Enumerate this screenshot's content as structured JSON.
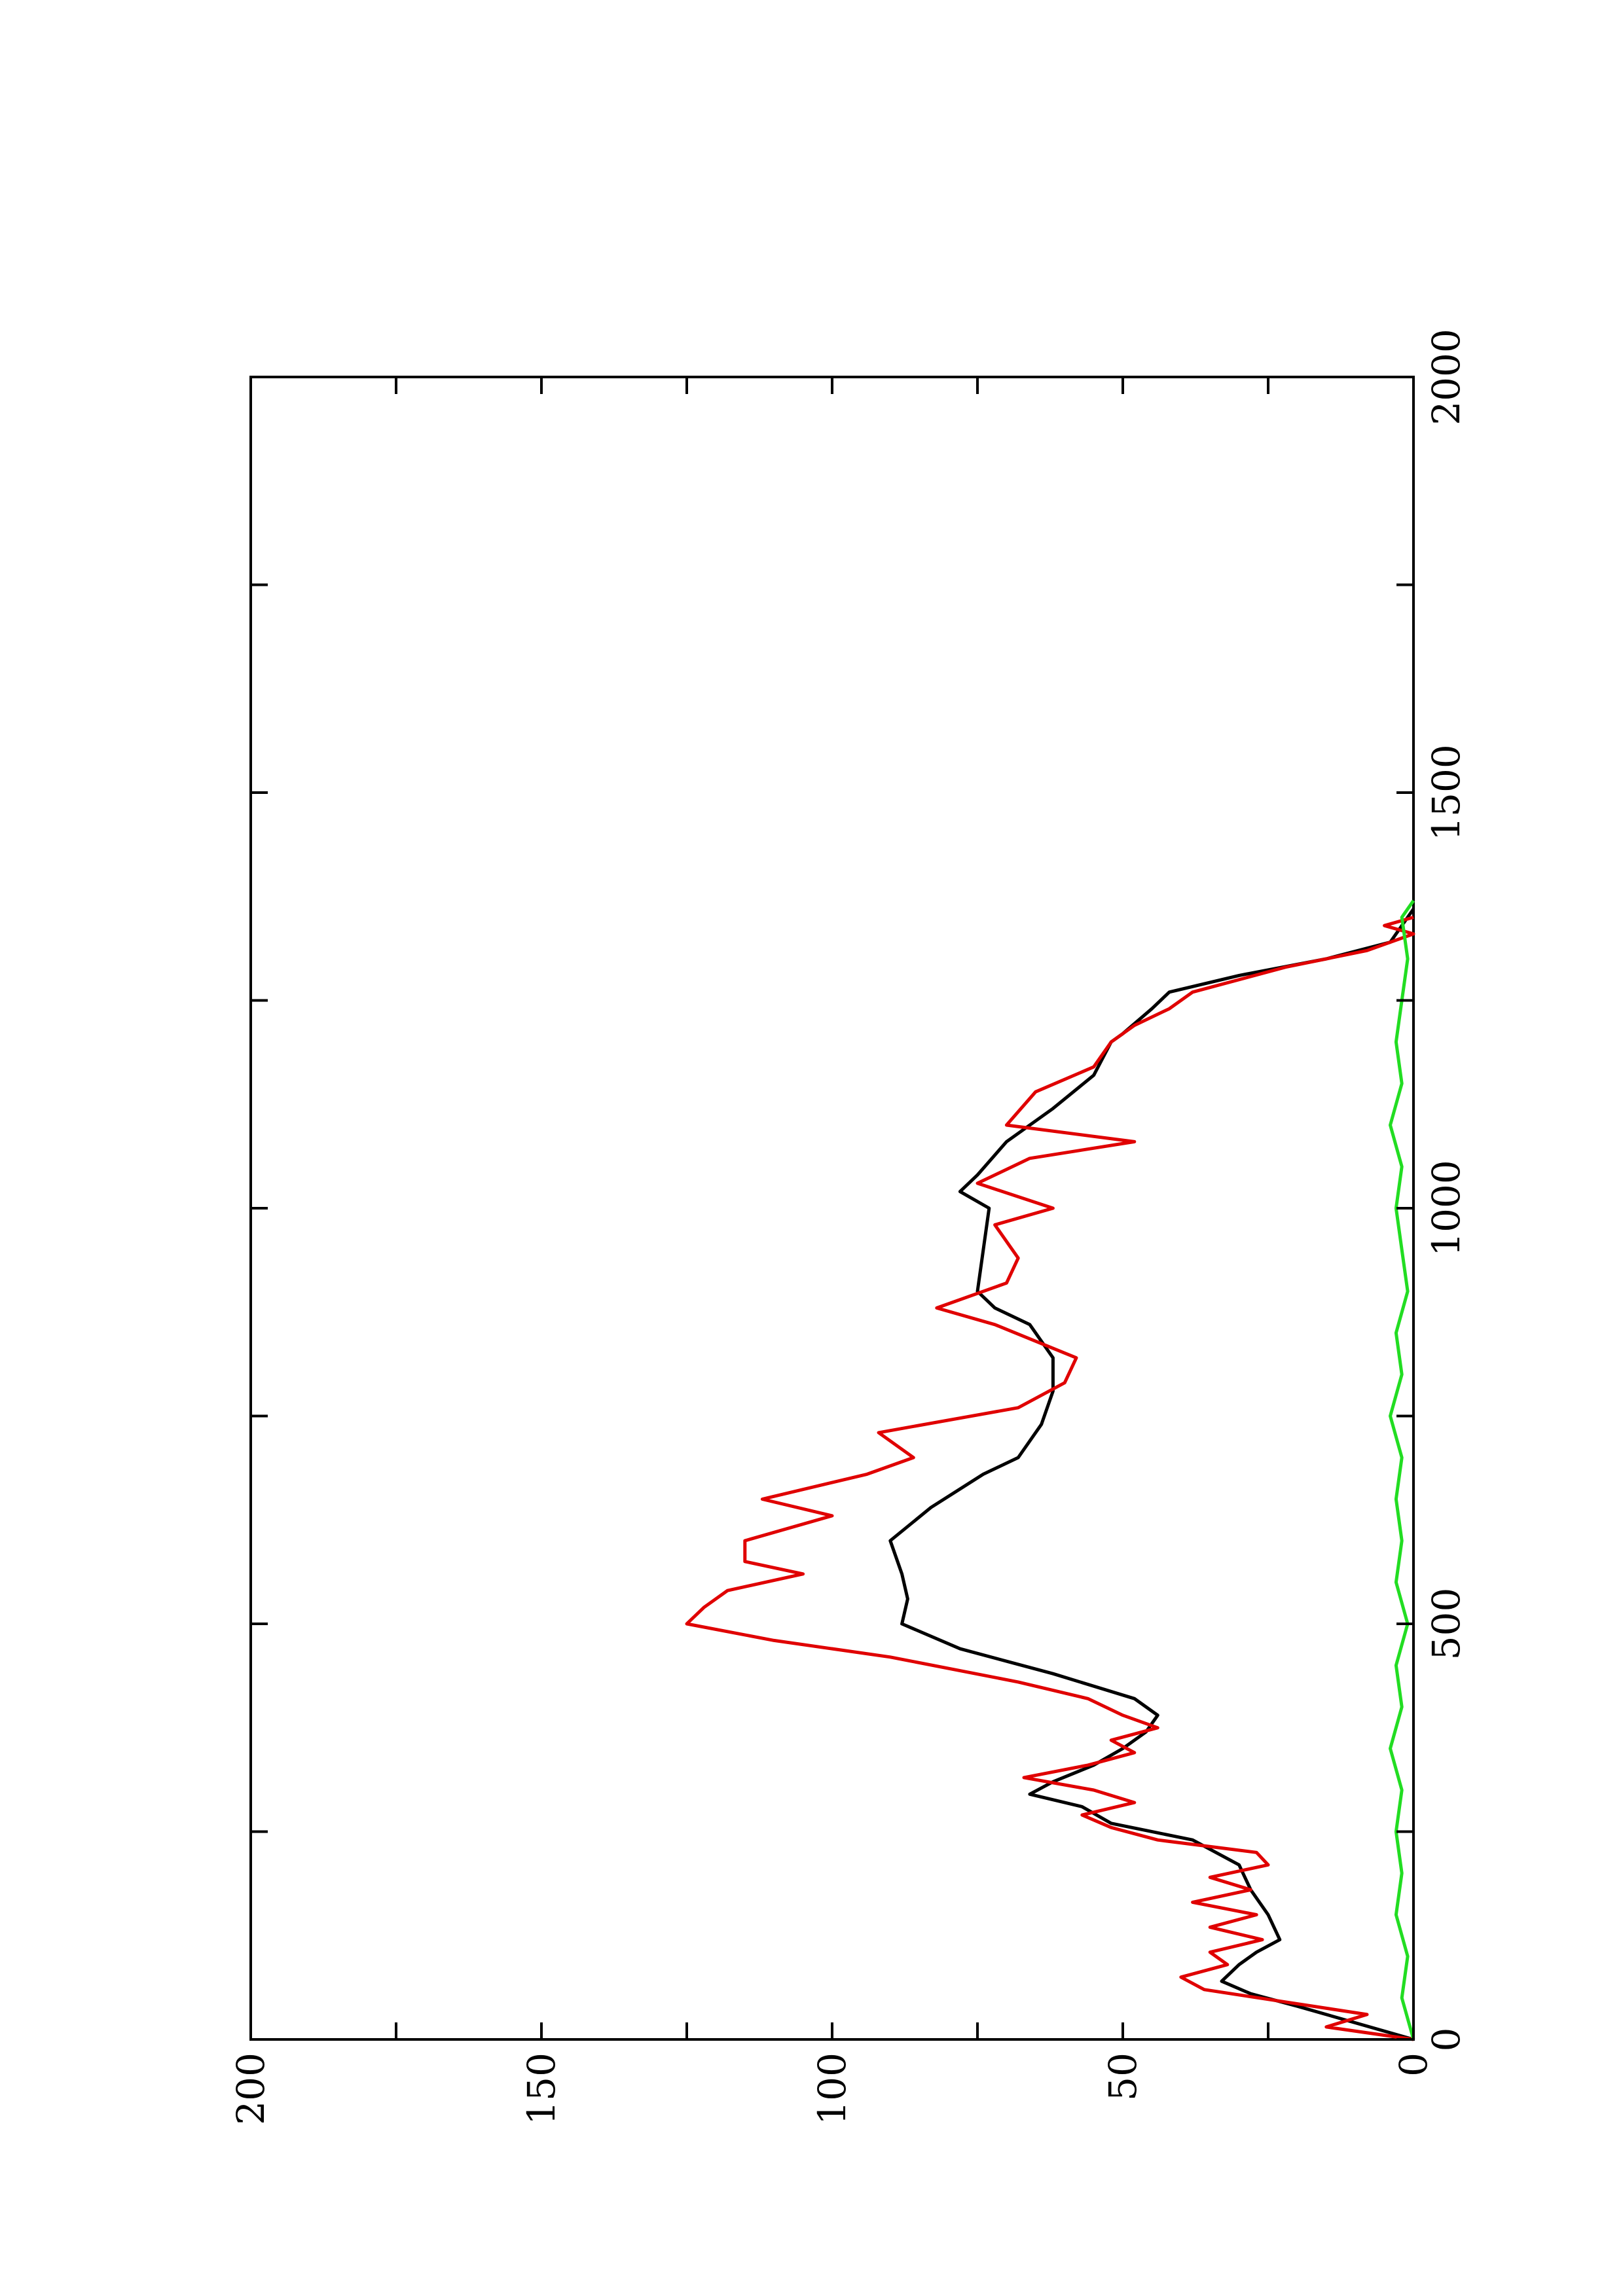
{
  "chart_data": {
    "type": "line",
    "orientation": "rotated-90-ccw",
    "xlim": [
      0,
      2000
    ],
    "ylim": [
      0,
      200
    ],
    "x_ticks": [
      0,
      500,
      1000,
      1500,
      2000
    ],
    "x_minor_ticks": [
      250,
      750,
      1250,
      1750
    ],
    "y_ticks": [
      0,
      50,
      100,
      150,
      200
    ],
    "y_minor_ticks": [
      25,
      75,
      125,
      175
    ],
    "grid": false,
    "legend": "none",
    "series": [
      {
        "color": "#000000",
        "x": [
          0,
          20,
          40,
          55,
          70,
          90,
          105,
          120,
          150,
          180,
          210,
          240,
          260,
          280,
          295,
          310,
          330,
          350,
          370,
          390,
          410,
          440,
          470,
          500,
          530,
          560,
          600,
          640,
          680,
          700,
          740,
          780,
          820,
          860,
          880,
          900,
          950,
          1000,
          1020,
          1040,
          1080,
          1120,
          1160,
          1200,
          1210,
          1240,
          1260,
          1280,
          1300,
          1320,
          1360
        ],
        "y": [
          0,
          10,
          20,
          28,
          33,
          30,
          27,
          23,
          25,
          28,
          30,
          38,
          52,
          57,
          66,
          62,
          55,
          50,
          46,
          44,
          48,
          62,
          78,
          88,
          87,
          88,
          90,
          83,
          74,
          68,
          64,
          62,
          62,
          66,
          72,
          75,
          74,
          73,
          78,
          75,
          70,
          62,
          55,
          52,
          50,
          45,
          42,
          30,
          15,
          4,
          0
        ]
      },
      {
        "color": "#e00000",
        "x": [
          0,
          15,
          30,
          45,
          60,
          75,
          90,
          105,
          120,
          135,
          150,
          165,
          180,
          195,
          210,
          225,
          240,
          255,
          270,
          285,
          300,
          315,
          330,
          345,
          360,
          375,
          390,
          410,
          430,
          460,
          480,
          500,
          520,
          540,
          560,
          575,
          600,
          630,
          650,
          680,
          700,
          730,
          760,
          790,
          820,
          860,
          880,
          910,
          940,
          980,
          1000,
          1030,
          1060,
          1080,
          1100,
          1140,
          1170,
          1200,
          1220,
          1240,
          1260,
          1290,
          1310,
          1330,
          1340,
          1350
        ],
        "y": [
          0,
          15,
          8,
          22,
          36,
          40,
          32,
          35,
          26,
          35,
          27,
          38,
          28,
          35,
          25,
          27,
          44,
          52,
          57,
          48,
          55,
          67,
          56,
          48,
          52,
          44,
          50,
          56,
          68,
          90,
          110,
          125,
          122,
          118,
          105,
          115,
          115,
          100,
          112,
          94,
          86,
          92,
          68,
          60,
          58,
          72,
          82,
          70,
          68,
          72,
          62,
          75,
          66,
          48,
          70,
          65,
          55,
          52,
          48,
          42,
          38,
          22,
          8,
          0,
          5,
          0
        ]
      },
      {
        "color": "#22dd22",
        "x": [
          0,
          50,
          100,
          150,
          200,
          250,
          300,
          350,
          400,
          450,
          500,
          550,
          600,
          650,
          700,
          750,
          800,
          850,
          900,
          950,
          1000,
          1050,
          1100,
          1150,
          1200,
          1250,
          1300,
          1350,
          1370
        ],
        "y": [
          0,
          2,
          1,
          3,
          2,
          3,
          2,
          4,
          2,
          3,
          1,
          3,
          2,
          3,
          2,
          4,
          2,
          3,
          1,
          2,
          3,
          2,
          4,
          2,
          3,
          2,
          1,
          2,
          0
        ]
      }
    ]
  }
}
